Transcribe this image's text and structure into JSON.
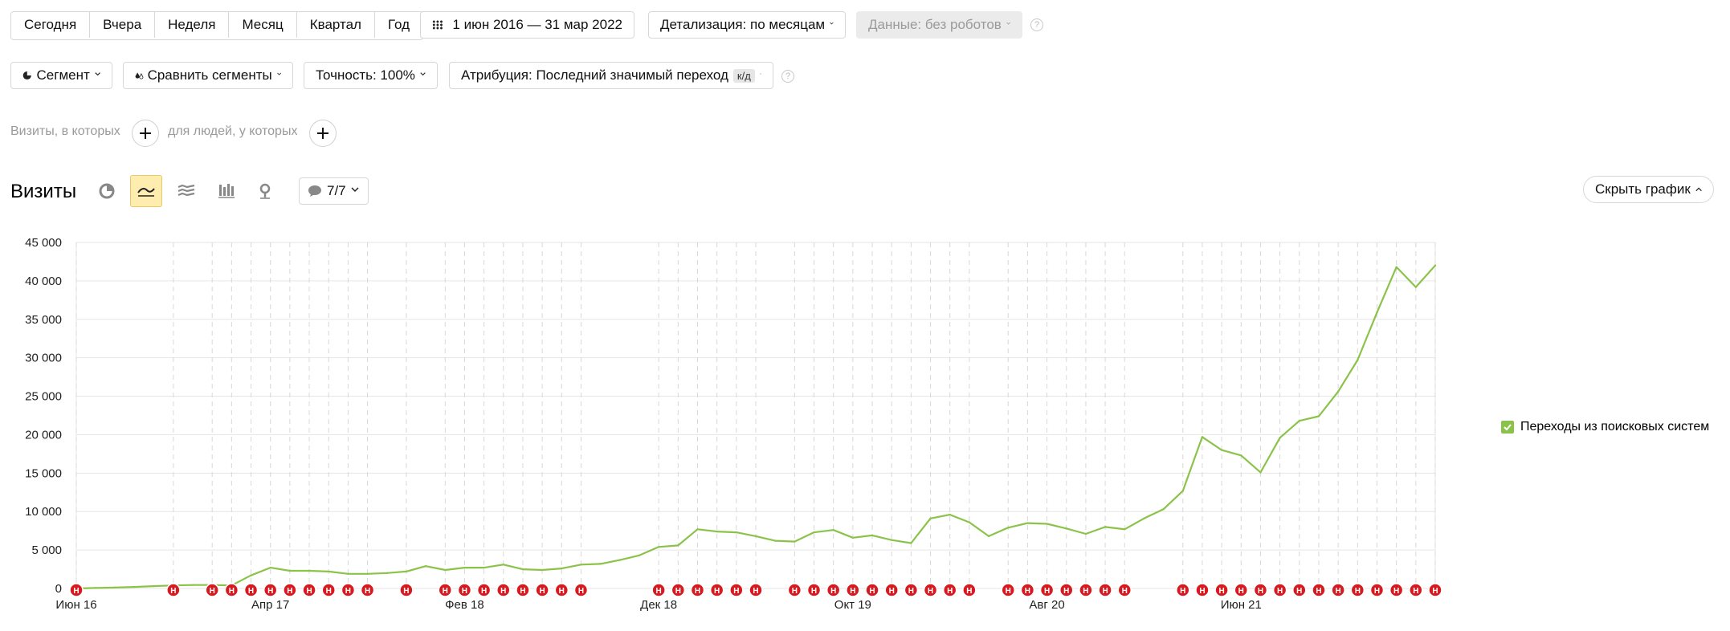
{
  "period_tabs": [
    "Сегодня",
    "Вчера",
    "Неделя",
    "Месяц",
    "Квартал",
    "Год"
  ],
  "date_range": "1 июн 2016 — 31 мар 2022",
  "detail": "Детализация: по месяцам",
  "data_filter": "Данные: без роботов",
  "segment": "Сегмент",
  "compare_segments": "Сравнить сегменты",
  "accuracy": "Точность: 100%",
  "attribution": "Атрибуция: Последний значимый переход",
  "attribution_badge": "к/д",
  "visits_where": "Визиты, в которых",
  "people_where": "для людей, у которых",
  "section_title": "Визиты",
  "annotations_counter": "7/7",
  "hide_chart": "Скрыть график",
  "help_glyph": "?",
  "note_glyph": "Н",
  "chart_data": {
    "type": "line",
    "y_ticks": [
      "45 000",
      "40 000",
      "35 000",
      "30 000",
      "25 000",
      "20 000",
      "15 000",
      "10 000",
      "5 000",
      "0"
    ],
    "ylim": [
      0,
      45000
    ],
    "x_tick_labels": [
      "Июн 16",
      "Апр 17",
      "Фев 18",
      "Дек 18",
      "Окт 19",
      "Авг 20",
      "Июн 21"
    ],
    "x_tick_index": [
      0,
      10,
      20,
      30,
      40,
      50,
      60
    ],
    "series": [
      {
        "name": "Переходы из поисковых систем",
        "color": "#8bc34a",
        "values": [
          0,
          60,
          120,
          200,
          300,
          400,
          450,
          450,
          400,
          1700,
          2700,
          2300,
          2300,
          2200,
          1900,
          1900,
          2000,
          2200,
          2900,
          2400,
          2700,
          2700,
          3100,
          2500,
          2400,
          2600,
          3100,
          3200,
          3700,
          4300,
          5400,
          5600,
          7700,
          7400,
          7300,
          6800,
          6200,
          6100,
          7300,
          7600,
          6600,
          6900,
          6300,
          5900,
          9100,
          9600,
          8600,
          6800,
          7900,
          8500,
          8400,
          7800,
          7100,
          8000,
          7700,
          9100,
          10300,
          12700,
          19700,
          18000,
          17300,
          15100,
          19600,
          21800,
          22400,
          25600,
          29700,
          35900,
          41800,
          39200,
          42000
        ]
      }
    ],
    "annotations": [
      0,
      5,
      7,
      8,
      9,
      10,
      11,
      12,
      13,
      14,
      15,
      17,
      19,
      20,
      21,
      22,
      23,
      24,
      25,
      26,
      30,
      31,
      32,
      33,
      34,
      35,
      37,
      38,
      39,
      40,
      41,
      42,
      43,
      44,
      45,
      46,
      48,
      49,
      50,
      51,
      52,
      53,
      54,
      57,
      58,
      59,
      60,
      61,
      62,
      63,
      64,
      65,
      66,
      67,
      68,
      69,
      70
    ],
    "legend_position": "right",
    "grid": true
  }
}
